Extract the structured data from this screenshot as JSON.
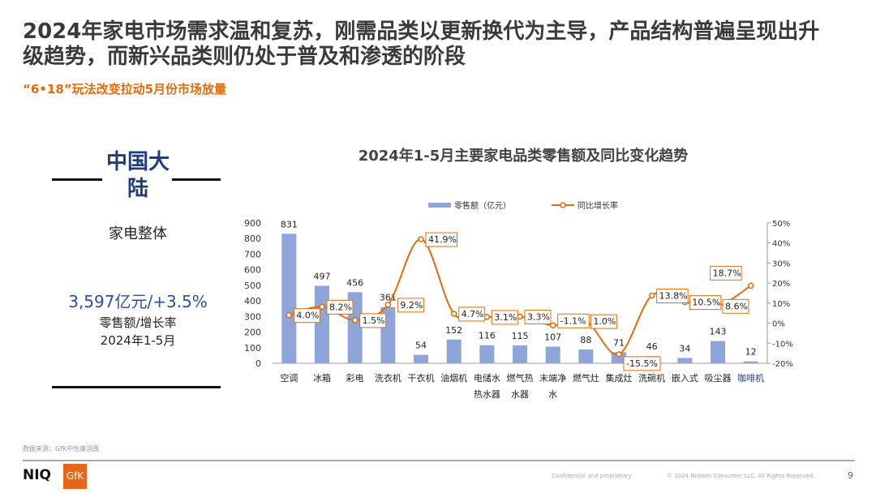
{
  "header": {
    "title": "2024年家电市场需求温和复苏，刚需品类以更新换代为主导，产品结构普遍呈现出升级趋势，而新兴品类则仍处于普及和渗透的阶段",
    "subtitle": "“6•18”玩法改变拉动5月份市场放量"
  },
  "summary": {
    "region": "中国大陆",
    "category": "家电整体",
    "value": "3,597亿元/+3.5%",
    "value_label": "零售额/增长率",
    "period": "2024年1-5月"
  },
  "chart_data": {
    "type": "bar+line",
    "title": "2024年1-5月主要家电品类零售额及同比变化趋势",
    "categories": [
      "空调",
      "冰箱",
      "彩电",
      "洗衣机",
      "干衣机",
      "油烟机",
      "电储水\n热水器",
      "燃气热\n水器",
      "末端净\n水",
      "燃气灶",
      "集成灶",
      "洗碗机",
      "嵌入式",
      "吸尘器",
      "咖啡机"
    ],
    "series": [
      {
        "name": "零售额（亿元）",
        "type": "bar",
        "axis": "left",
        "color": "#8ea5d9",
        "values": [
          831,
          497,
          456,
          361,
          54,
          152,
          116,
          115,
          107,
          88,
          71,
          46,
          34,
          143,
          12
        ]
      },
      {
        "name": "同比增长率",
        "type": "line",
        "axis": "right",
        "color": "#e46c0a",
        "values": [
          4.0,
          8.2,
          1.5,
          9.2,
          41.9,
          4.7,
          3.1,
          3.3,
          -1.1,
          1.0,
          -15.5,
          13.8,
          10.5,
          8.6,
          18.7
        ]
      }
    ],
    "y_left": {
      "range": [
        0,
        900
      ],
      "ticks": [
        0,
        100,
        200,
        300,
        400,
        500,
        600,
        700,
        800,
        900
      ]
    },
    "y_right": {
      "range": [
        -20,
        50
      ],
      "ticks": [
        "-20%",
        "-10%",
        "0%",
        "10%",
        "20%",
        "30%",
        "40%",
        "50%"
      ]
    },
    "legend": "top",
    "grid": false
  },
  "footer": {
    "source": "数据来源：GfK中怡康测算",
    "logo1": "NIQ",
    "logo2": "GfK",
    "confidential": "Confidential and proprietary",
    "copyright": "© 2024 Nielsen Consumer LLC. All Rights Reserved.",
    "page": "9"
  }
}
